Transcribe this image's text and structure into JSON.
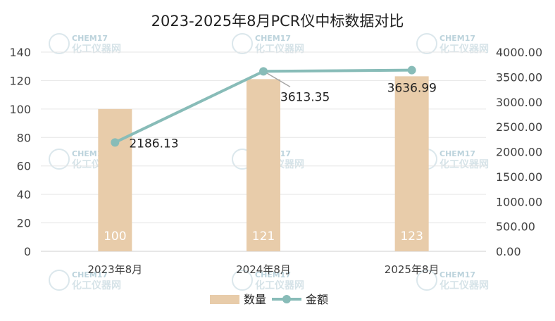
{
  "chart_data": {
    "type": "bar+line",
    "title": "2023-2025年8月PCR仪中标数据对比",
    "categories": [
      "2023年8月",
      "2024年8月",
      "2025年8月"
    ],
    "series": [
      {
        "name": "数量",
        "type": "bar",
        "axis": "left",
        "values": [
          100,
          121,
          123
        ],
        "color": "#e8ccaa"
      },
      {
        "name": "金额",
        "type": "line",
        "axis": "right",
        "values": [
          2186.13,
          3613.35,
          3636.99
        ],
        "color": "#88bcb8"
      }
    ],
    "y_left": {
      "min": 0,
      "max": 140,
      "ticks": [
        "0",
        "20",
        "40",
        "60",
        "80",
        "100",
        "120",
        "140"
      ]
    },
    "y_right": {
      "min": 0,
      "max": 4000,
      "ticks": [
        "0.00",
        "500.00",
        "1000.00",
        "1500.00",
        "2000.00",
        "2500.00",
        "3000.00",
        "3500.00",
        "4000.00"
      ]
    },
    "bar_labels": [
      "100",
      "121",
      "123"
    ],
    "line_labels": [
      "2186.13",
      "3613.35",
      "3636.99"
    ],
    "legend": {
      "position": "bottom",
      "items": [
        "数量",
        "金额"
      ]
    },
    "grid": true
  },
  "watermark": {
    "en": "CHEM17",
    "cn": "化工仪器网"
  }
}
